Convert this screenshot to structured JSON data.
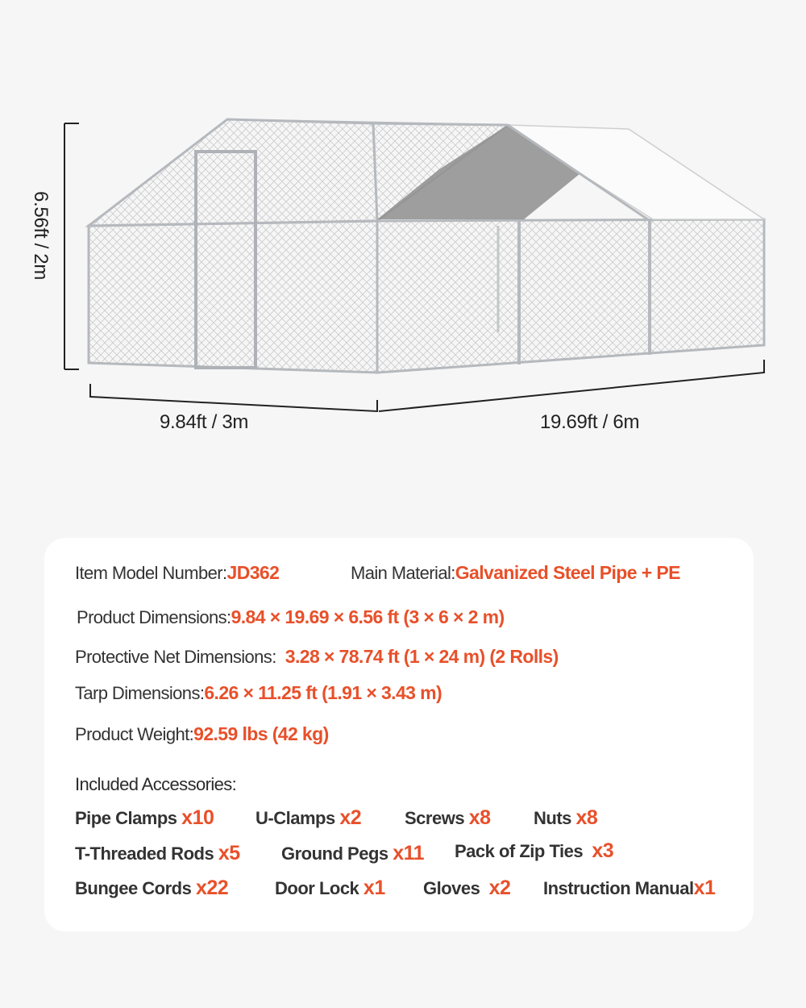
{
  "dimensions": {
    "height": "6.56ft / 2m",
    "width": "9.84ft / 3m",
    "length": "19.69ft / 6m"
  },
  "colors": {
    "accent": "#e8502a",
    "background": "#f6f6f6",
    "card": "#ffffff"
  },
  "specs": {
    "model_label": "Item Model Number:",
    "model_value": "JD362",
    "material_label": "Main Material:",
    "material_value": "Galvanized Steel Pipe + PE",
    "product_dim_label": "Product Dimensions:",
    "product_dim_value": "9.84 × 19.69 × 6.56 ft (3 × 6 × 2 m)",
    "net_dim_label": "Protective Net Dimensions:",
    "net_dim_value": "3.28 × 78.74 ft (1 × 24 m) (2 Rolls)",
    "tarp_dim_label": "Tarp Dimensions:",
    "tarp_dim_value": "6.26 × 11.25 ft (1.91 × 3.43 m)",
    "weight_label": "Product Weight:",
    "weight_value": "92.59 lbs (42 kg)"
  },
  "accessories": {
    "title": "Included Accessories:",
    "items": [
      {
        "name": "Pipe Clamps",
        "qty": "x10"
      },
      {
        "name": "U-Clamps",
        "qty": "x2"
      },
      {
        "name": "Screws",
        "qty": "x8"
      },
      {
        "name": "Nuts",
        "qty": "x8"
      },
      {
        "name": "T-Threaded Rods",
        "qty": "x5"
      },
      {
        "name": "Ground Pegs",
        "qty": "x11"
      },
      {
        "name": "Pack of Zip Ties",
        "qty": "x3"
      },
      {
        "name": "Bungee Cords",
        "qty": "x22"
      },
      {
        "name": "Door Lock",
        "qty": "x1"
      },
      {
        "name": "Gloves",
        "qty": "x2"
      },
      {
        "name": "Instruction Manual",
        "qty": "x1"
      }
    ]
  }
}
